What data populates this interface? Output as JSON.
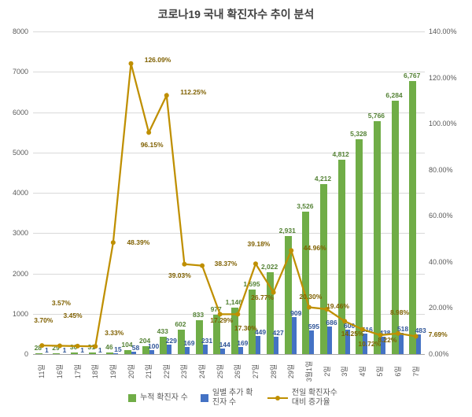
{
  "title": "코로나19 국내 확진자수 추이 분석",
  "colors": {
    "cumulative_bar": "#70AD47",
    "daily_bar": "#4472C4",
    "growth_line": "#BF8F00",
    "cumulative_label": "#548235",
    "daily_label": "#2F5597",
    "growth_label": "#7F6000",
    "axis_text": "#595959",
    "gridline": "#D9D9D9",
    "title_text": "#404040"
  },
  "chart_data": {
    "type": "combo-bar-line",
    "title": "코로나19 국내 확진자수 추이 분석",
    "categories": [
      "11일",
      "16일",
      "17일",
      "18일",
      "19일",
      "20일",
      "21일",
      "22일",
      "23일",
      "24일",
      "25일",
      "26일",
      "27일",
      "28일",
      "29일",
      "3월1일",
      "2일",
      "3일",
      "4일",
      "5일",
      "6일",
      "7일"
    ],
    "series": [
      {
        "name": "누적 확진자 수",
        "type": "bar",
        "axis": "left",
        "color": "#70AD47",
        "values": [
          28,
          29,
          30,
          31,
          46,
          104,
          204,
          433,
          602,
          833,
          977,
          1146,
          1595,
          2022,
          2931,
          3526,
          4212,
          4812,
          5328,
          5766,
          6284,
          6767
        ]
      },
      {
        "name": "일별 추가 확진자 수",
        "type": "bar",
        "axis": "left",
        "color": "#4472C4",
        "values": [
          1,
          1,
          1,
          1,
          15,
          58,
          100,
          229,
          169,
          231,
          144,
          169,
          449,
          427,
          909,
          595,
          686,
          600,
          516,
          438,
          518,
          483
        ]
      },
      {
        "name": "전일 확진자수 대비 증가율",
        "type": "line",
        "axis": "right",
        "unit": "%",
        "color": "#BF8F00",
        "values": [
          3.7,
          3.57,
          3.45,
          3.33,
          48.39,
          126.09,
          96.15,
          112.25,
          39.03,
          38.37,
          17.29,
          17.3,
          39.18,
          26.77,
          44.96,
          20.3,
          19.46,
          14.25,
          10.72,
          8.22,
          8.98,
          7.69
        ]
      }
    ],
    "left_axis": {
      "min": 0,
      "max": 8000,
      "step": 1000
    },
    "right_axis": {
      "min": 0,
      "max": 140,
      "step": 20,
      "format": "percent-2dp"
    },
    "grid": true,
    "legend_position": "bottom"
  }
}
